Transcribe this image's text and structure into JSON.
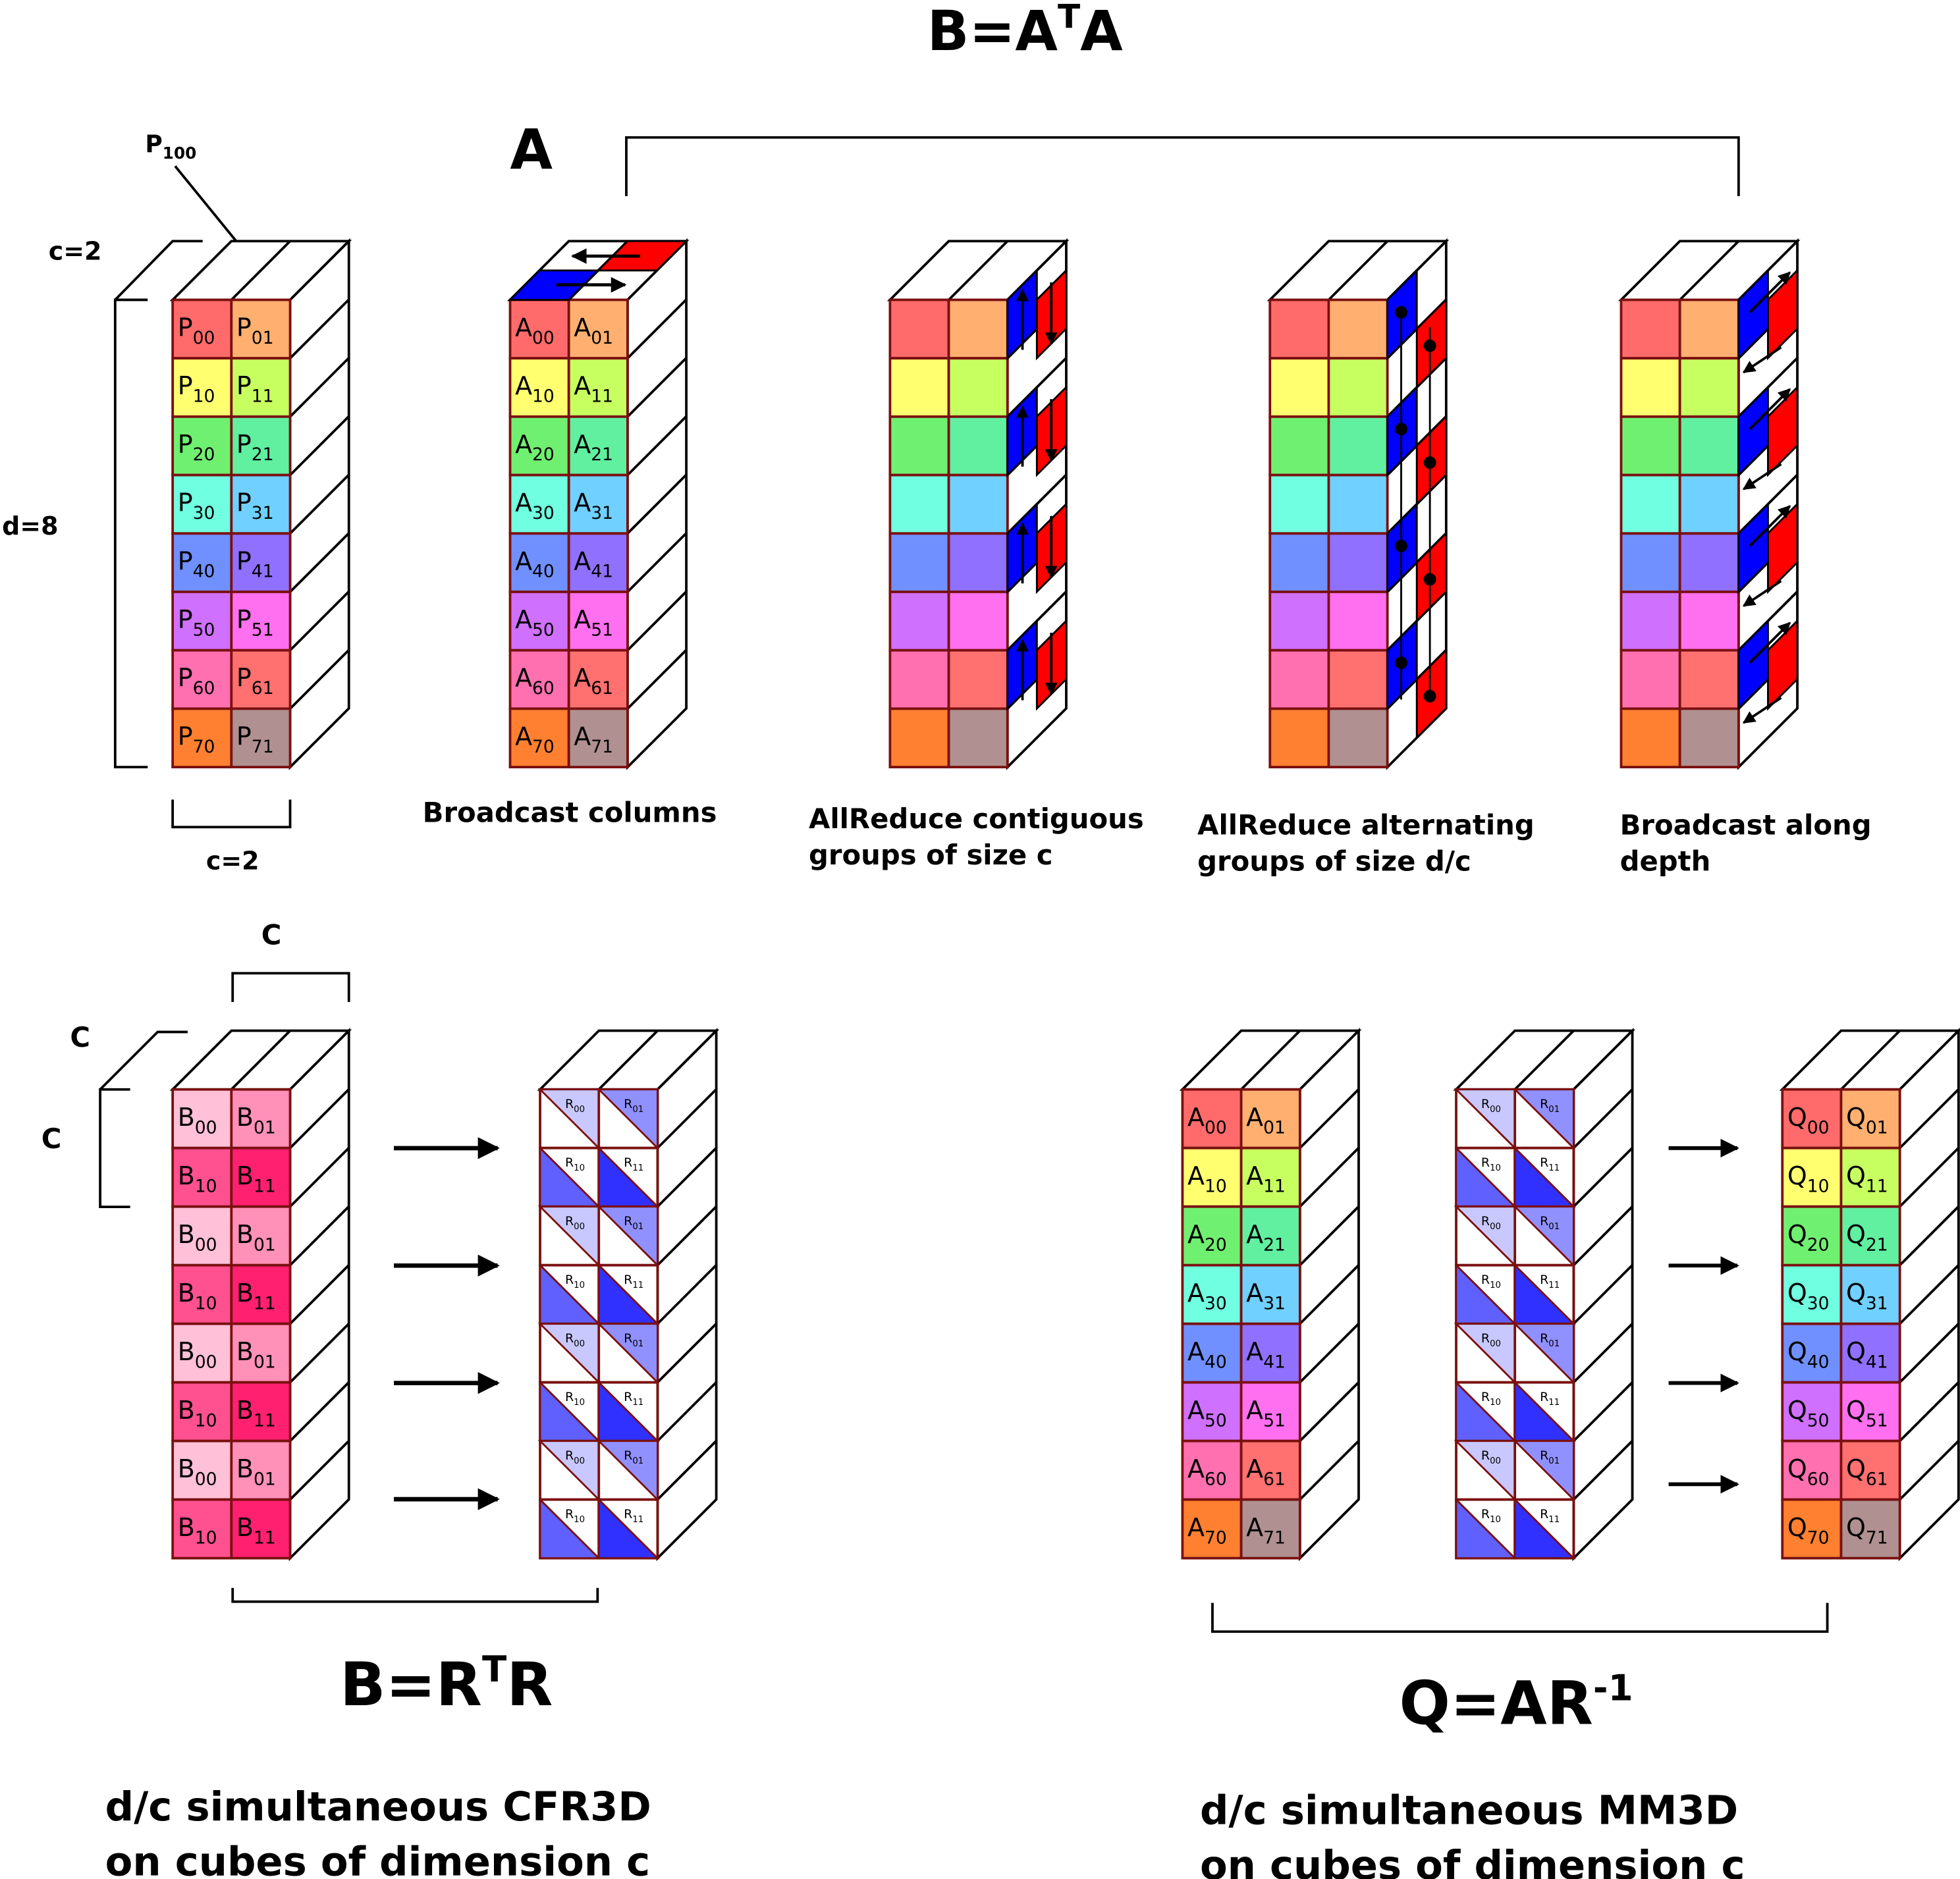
{
  "top": {
    "title": {
      "before": "B=A",
      "sup": "T",
      "after": "A"
    },
    "p100": {
      "base": "P",
      "sub": "100"
    },
    "a_label": "A",
    "c_depth": "c=2",
    "d_height": "d=8",
    "c_width": "c=2",
    "grids": [
      {
        "letter": "P",
        "subs": [
          [
            "00",
            "01"
          ],
          [
            "10",
            "11"
          ],
          [
            "20",
            "21"
          ],
          [
            "30",
            "31"
          ],
          [
            "40",
            "41"
          ],
          [
            "50",
            "51"
          ],
          [
            "60",
            "61"
          ],
          [
            "70",
            "71"
          ]
        ]
      },
      {
        "letter": "A",
        "subs": [
          [
            "00",
            "01"
          ],
          [
            "10",
            "11"
          ],
          [
            "20",
            "21"
          ],
          [
            "30",
            "31"
          ],
          [
            "40",
            "41"
          ],
          [
            "50",
            "51"
          ],
          [
            "60",
            "61"
          ],
          [
            "70",
            "71"
          ]
        ]
      }
    ],
    "captions": [
      [
        "Broadcast columns"
      ],
      [
        "AllReduce contiguous",
        "groups of size c"
      ],
      [
        "AllReduce alternating",
        "groups of size d/c"
      ],
      [
        "Broadcast along",
        "depth"
      ]
    ]
  },
  "left_panel": {
    "c_top": "C",
    "c_depth": "C",
    "c_side": "C",
    "b_grid": {
      "letter": "B",
      "subs": [
        [
          "00",
          "01"
        ],
        [
          "10",
          "11"
        ]
      ]
    },
    "r_grid": {
      "letter": "R",
      "subs": [
        [
          "00",
          "01"
        ],
        [
          "10",
          "11"
        ]
      ]
    },
    "formula": {
      "before": "B=R",
      "sup": "T",
      "after": "R"
    },
    "caption": [
      "d/c simultaneous CFR3D",
      "on cubes of dimension c"
    ]
  },
  "right_panel": {
    "a_grid": {
      "letter": "A",
      "subs": [
        [
          "00",
          "01"
        ],
        [
          "10",
          "11"
        ],
        [
          "20",
          "21"
        ],
        [
          "30",
          "31"
        ],
        [
          "40",
          "41"
        ],
        [
          "50",
          "51"
        ],
        [
          "60",
          "61"
        ],
        [
          "70",
          "71"
        ]
      ]
    },
    "r_grid": {
      "letter": "R",
      "subs": [
        [
          "00",
          "01"
        ],
        [
          "10",
          "11"
        ]
      ]
    },
    "q_grid": {
      "letter": "Q",
      "subs": [
        [
          "00",
          "01"
        ],
        [
          "10",
          "11"
        ],
        [
          "20",
          "21"
        ],
        [
          "30",
          "31"
        ],
        [
          "40",
          "41"
        ],
        [
          "50",
          "51"
        ],
        [
          "60",
          "61"
        ],
        [
          "70",
          "71"
        ]
      ]
    },
    "formula": {
      "before": "Q=AR",
      "sup": "-1"
    },
    "caption": [
      "d/c simultaneous MM3D",
      "on cubes of dimension c"
    ]
  }
}
